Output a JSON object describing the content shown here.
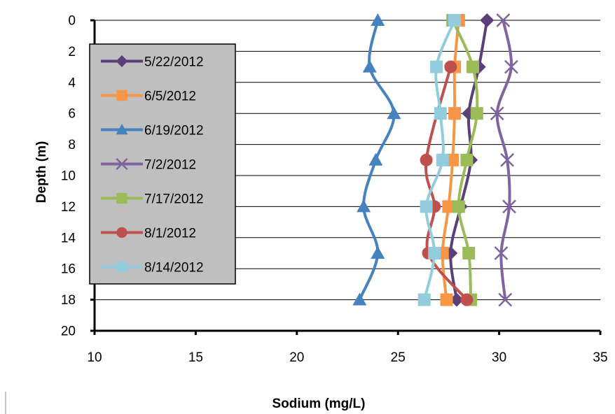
{
  "chart_data": {
    "type": "line",
    "orientation": "vertical-profile",
    "xlabel": "Sodium (mg/L)",
    "ylabel": "Depth (m)",
    "xlim": [
      10,
      35
    ],
    "ylim": [
      0,
      20
    ],
    "y_inverted": true,
    "x_ticks": [
      10,
      15,
      20,
      25,
      30,
      35
    ],
    "y_ticks": [
      0,
      2,
      4,
      6,
      8,
      10,
      12,
      14,
      16,
      18,
      20
    ],
    "grid": "horizontal major",
    "legend_position": "left",
    "series": [
      {
        "name": "5/22/2012",
        "color": "#5B3F78",
        "marker": "diamond",
        "points": [
          {
            "x": 29.4,
            "y": 0
          },
          {
            "x": 29.0,
            "y": 3
          },
          {
            "x": 28.5,
            "y": 6
          },
          {
            "x": 28.6,
            "y": 9
          },
          {
            "x": 28.1,
            "y": 12
          },
          {
            "x": 27.6,
            "y": 15
          },
          {
            "x": 27.9,
            "y": 18
          }
        ]
      },
      {
        "name": "6/5/2012",
        "color": "#F79646",
        "marker": "square",
        "points": [
          {
            "x": 28.0,
            "y": 0
          },
          {
            "x": 27.8,
            "y": 3
          },
          {
            "x": 27.8,
            "y": 6
          },
          {
            "x": 27.7,
            "y": 9
          },
          {
            "x": 27.5,
            "y": 12
          },
          {
            "x": 27.2,
            "y": 15
          },
          {
            "x": 27.4,
            "y": 18
          }
        ]
      },
      {
        "name": "6/19/2012",
        "color": "#4682BE",
        "marker": "triangle",
        "points": [
          {
            "x": 24.0,
            "y": 0
          },
          {
            "x": 23.6,
            "y": 3
          },
          {
            "x": 24.8,
            "y": 6
          },
          {
            "x": 23.9,
            "y": 9
          },
          {
            "x": 23.3,
            "y": 12
          },
          {
            "x": 24.0,
            "y": 15
          },
          {
            "x": 23.1,
            "y": 18
          }
        ]
      },
      {
        "name": "7/2/2012",
        "color": "#8064A2",
        "marker": "x",
        "points": [
          {
            "x": 30.2,
            "y": 0
          },
          {
            "x": 30.6,
            "y": 3
          },
          {
            "x": 29.9,
            "y": 6
          },
          {
            "x": 30.4,
            "y": 9
          },
          {
            "x": 30.5,
            "y": 12
          },
          {
            "x": 30.1,
            "y": 15
          },
          {
            "x": 30.3,
            "y": 18
          }
        ]
      },
      {
        "name": "7/17/2012",
        "color": "#9BBB59",
        "marker": "square",
        "points": [
          {
            "x": 27.7,
            "y": 0
          },
          {
            "x": 28.7,
            "y": 3
          },
          {
            "x": 28.9,
            "y": 6
          },
          {
            "x": 28.4,
            "y": 9
          },
          {
            "x": 28.0,
            "y": 12
          },
          {
            "x": 28.5,
            "y": 15
          },
          {
            "x": 28.6,
            "y": 18
          }
        ]
      },
      {
        "name": "8/1/2012",
        "color": "#C0504D",
        "marker": "circle",
        "points": [
          {
            "x": 27.6,
            "y": 3
          },
          {
            "x": 26.4,
            "y": 9
          },
          {
            "x": 26.8,
            "y": 12
          },
          {
            "x": 26.5,
            "y": 15
          },
          {
            "x": 28.4,
            "y": 18
          }
        ]
      },
      {
        "name": "8/14/2012",
        "color": "#93CDDD",
        "marker": "square",
        "points": [
          {
            "x": 27.8,
            "y": 0
          },
          {
            "x": 26.9,
            "y": 3
          },
          {
            "x": 27.1,
            "y": 6
          },
          {
            "x": 27.2,
            "y": 9
          },
          {
            "x": 26.4,
            "y": 12
          },
          {
            "x": 26.8,
            "y": 15
          },
          {
            "x": 26.3,
            "y": 18
          }
        ]
      }
    ]
  }
}
